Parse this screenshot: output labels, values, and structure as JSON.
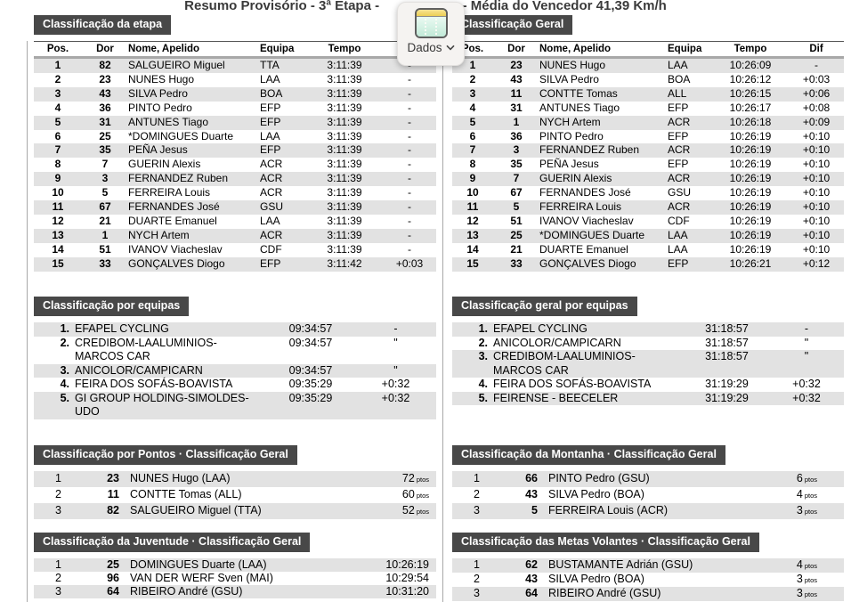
{
  "title": {
    "left": "Resumo Provisório - 3ª Etapa -",
    "right": "m - Média do Vencedor 41,39 Km/h"
  },
  "dados_menu": {
    "label": "Dados"
  },
  "colors": {
    "badge-bg": "#484848",
    "zebra": "#e2e2e2",
    "divider": "#a9a9a9",
    "popup-bg": "#f5f3f1",
    "icon-yellow": "#ecce55",
    "icon-mint": "#d3efe2"
  },
  "sections": {
    "etapa": {
      "title": "Classificação da etapa",
      "columns": [
        "Pos.",
        "Dor",
        "Nome, Apelido",
        "Equipa",
        "Tempo",
        "Dif"
      ],
      "rows": [
        [
          "1",
          "82",
          "SALGUEIRO Miguel",
          "TTA",
          "3:11:39",
          "-"
        ],
        [
          "2",
          "23",
          "NUNES Hugo",
          "LAA",
          "3:11:39",
          "-"
        ],
        [
          "3",
          "43",
          "SILVA Pedro",
          "BOA",
          "3:11:39",
          "-"
        ],
        [
          "4",
          "36",
          "PINTO Pedro",
          "EFP",
          "3:11:39",
          "-"
        ],
        [
          "5",
          "31",
          "ANTUNES Tiago",
          "EFP",
          "3:11:39",
          "-"
        ],
        [
          "6",
          "25",
          "*DOMINGUES Duarte",
          "LAA",
          "3:11:39",
          "-"
        ],
        [
          "7",
          "35",
          "PEÑA Jesus",
          "EFP",
          "3:11:39",
          "-"
        ],
        [
          "8",
          "7",
          "GUERIN Alexis",
          "ACR",
          "3:11:39",
          "-"
        ],
        [
          "9",
          "3",
          "FERNANDEZ Ruben",
          "ACR",
          "3:11:39",
          "-"
        ],
        [
          "10",
          "5",
          "FERREIRA Louis",
          "ACR",
          "3:11:39",
          "-"
        ],
        [
          "11",
          "67",
          "FERNANDES José",
          "GSU",
          "3:11:39",
          "-"
        ],
        [
          "12",
          "21",
          "DUARTE Emanuel",
          "LAA",
          "3:11:39",
          "-"
        ],
        [
          "13",
          "1",
          "NYCH Artem",
          "ACR",
          "3:11:39",
          "-"
        ],
        [
          "14",
          "51",
          "IVANOV Viacheslav",
          "CDF",
          "3:11:39",
          "-"
        ],
        [
          "15",
          "33",
          "GONÇALVES Diogo",
          "EFP",
          "3:11:42",
          "+0:03"
        ]
      ]
    },
    "geral": {
      "title": "Classificação Geral",
      "columns": [
        "Pos.",
        "Dor",
        "Nome, Apelido",
        "Equipa",
        "Tempo",
        "Dif"
      ],
      "rows": [
        [
          "1",
          "23",
          "NUNES Hugo",
          "LAA",
          "10:26:09",
          "-"
        ],
        [
          "2",
          "43",
          "SILVA Pedro",
          "BOA",
          "10:26:12",
          "+0:03"
        ],
        [
          "3",
          "11",
          "CONTTE Tomas",
          "ALL",
          "10:26:15",
          "+0:06"
        ],
        [
          "4",
          "31",
          "ANTUNES Tiago",
          "EFP",
          "10:26:17",
          "+0:08"
        ],
        [
          "5",
          "1",
          "NYCH Artem",
          "ACR",
          "10:26:18",
          "+0:09"
        ],
        [
          "6",
          "36",
          "PINTO Pedro",
          "EFP",
          "10:26:19",
          "+0:10"
        ],
        [
          "7",
          "3",
          "FERNANDEZ Ruben",
          "ACR",
          "10:26:19",
          "+0:10"
        ],
        [
          "8",
          "35",
          "PEÑA Jesus",
          "EFP",
          "10:26:19",
          "+0:10"
        ],
        [
          "9",
          "7",
          "GUERIN Alexis",
          "ACR",
          "10:26:19",
          "+0:10"
        ],
        [
          "10",
          "67",
          "FERNANDES José",
          "GSU",
          "10:26:19",
          "+0:10"
        ],
        [
          "11",
          "5",
          "FERREIRA Louis",
          "ACR",
          "10:26:19",
          "+0:10"
        ],
        [
          "12",
          "51",
          "IVANOV Viacheslav",
          "CDF",
          "10:26:19",
          "+0:10"
        ],
        [
          "13",
          "25",
          "*DOMINGUES Duarte",
          "LAA",
          "10:26:19",
          "+0:10"
        ],
        [
          "14",
          "21",
          "DUARTE Emanuel",
          "LAA",
          "10:26:19",
          "+0:10"
        ],
        [
          "15",
          "33",
          "GONÇALVES Diogo",
          "EFP",
          "10:26:21",
          "+0:12"
        ]
      ]
    },
    "equipas": {
      "title": "Classificação por equipas",
      "rows": [
        [
          "1.",
          "EFAPEL CYCLING",
          "09:34:57",
          "-"
        ],
        [
          "2.",
          "CREDIBOM-LAALUMINIOS-MARCOS CAR",
          "09:34:57",
          "\""
        ],
        [
          "3.",
          "ANICOLOR/CAMPICARN",
          "09:34:57",
          "\""
        ],
        [
          "4.",
          "FEIRA DOS SOFÁS-BOAVISTA",
          "09:35:29",
          "+0:32"
        ],
        [
          "5.",
          "GI GROUP HOLDING-SIMOLDES-UDO",
          "09:35:29",
          "+0:32"
        ]
      ]
    },
    "geral_equipas": {
      "title": "Classificação geral por equipas",
      "rows": [
        [
          "1.",
          "EFAPEL CYCLING",
          "31:18:57",
          "-"
        ],
        [
          "2.",
          "ANICOLOR/CAMPICARN",
          "31:18:57",
          "\""
        ],
        [
          "3.",
          "CREDIBOM-LAALUMINIOS-MARCOS CAR",
          "31:18:57",
          "\""
        ],
        [
          "4.",
          "FEIRA DOS SOFÁS-BOAVISTA",
          "31:19:29",
          "+0:32"
        ],
        [
          "5.",
          "FEIRENSE - BEECELER",
          "31:19:29",
          "+0:32"
        ]
      ]
    },
    "pontos": {
      "title": "Classificação por Pontos · Classificação Geral",
      "rows": [
        [
          "1",
          "23",
          "NUNES Hugo (LAA)",
          {
            "v": "72",
            "u": "ptos"
          }
        ],
        [
          "2",
          "11",
          "CONTTE Tomas (ALL)",
          {
            "v": "60",
            "u": "ptos"
          }
        ],
        [
          "3",
          "82",
          "SALGUEIRO Miguel (TTA)",
          {
            "v": "52",
            "u": "ptos"
          }
        ]
      ]
    },
    "montanha": {
      "title": "Classificação da Montanha · Classificação Geral",
      "rows": [
        [
          "1",
          "66",
          "PINTO Pedro (GSU)",
          {
            "v": "6",
            "u": "ptos"
          }
        ],
        [
          "2",
          "43",
          "SILVA Pedro (BOA)",
          {
            "v": "4",
            "u": "ptos"
          }
        ],
        [
          "3",
          "5",
          "FERREIRA Louis (ACR)",
          {
            "v": "3",
            "u": "ptos"
          }
        ]
      ]
    },
    "juventude": {
      "title": "Classificação da Juventude · Classificação Geral",
      "rows": [
        [
          "1",
          "25",
          "DOMINGUES Duarte (LAA)",
          "10:26:19"
        ],
        [
          "2",
          "96",
          "VAN DER WERF Sven (MAI)",
          "10:29:54"
        ],
        [
          "3",
          "64",
          "RIBEIRO André (GSU)",
          "10:31:20"
        ]
      ]
    },
    "metas": {
      "title": "Classificação das Metas Volantes · Classificação Geral",
      "rows": [
        [
          "1",
          "62",
          "BUSTAMANTE Adrián (GSU)",
          {
            "v": "4",
            "u": "ptos"
          }
        ],
        [
          "2",
          "43",
          "SILVA Pedro (BOA)",
          {
            "v": "3",
            "u": "ptos"
          }
        ],
        [
          "3",
          "64",
          "RIBEIRO André (GSU)",
          {
            "v": "3",
            "u": "ptos"
          }
        ]
      ]
    }
  }
}
